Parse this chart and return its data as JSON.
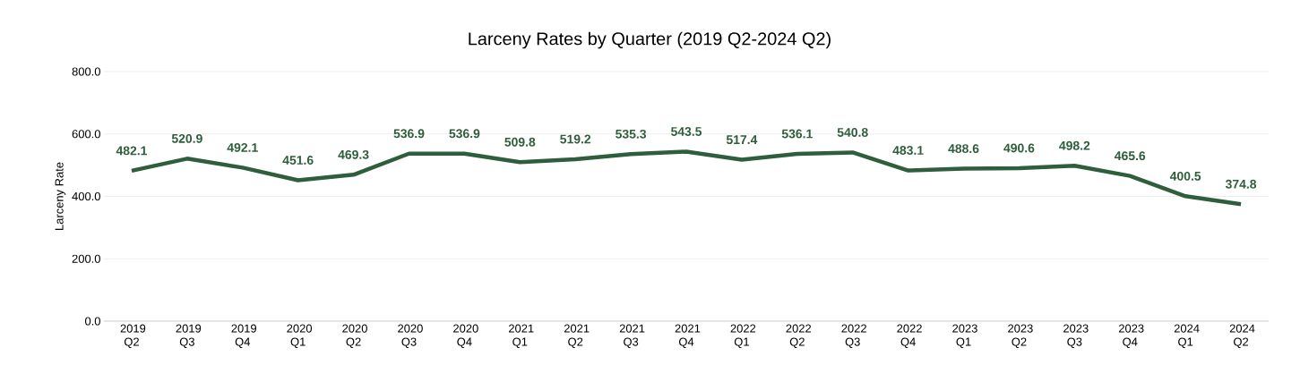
{
  "chart_data": {
    "type": "line",
    "title": "Larceny Rates by Quarter (2019 Q2-2024 Q2)",
    "ylabel": "Larceny Rate",
    "categories": [
      "2019 Q2",
      "2019 Q3",
      "2019 Q4",
      "2020 Q1",
      "2020 Q2",
      "2020 Q3",
      "2020 Q4",
      "2021 Q1",
      "2021 Q2",
      "2021 Q3",
      "2021 Q4",
      "2022 Q1",
      "2022 Q2",
      "2022 Q3",
      "2022 Q4",
      "2023 Q1",
      "2023 Q2",
      "2023 Q3",
      "2023 Q4",
      "2024 Q1",
      "2024 Q2"
    ],
    "values": [
      482.1,
      520.9,
      492.1,
      451.6,
      469.3,
      536.9,
      536.9,
      509.8,
      519.2,
      535.3,
      543.5,
      517.4,
      536.1,
      540.8,
      483.1,
      488.6,
      490.6,
      498.2,
      465.6,
      400.5,
      374.8
    ],
    "color": "#2e5e3b",
    "ylim": [
      0,
      800
    ],
    "yticks": [
      {
        "value": 0,
        "label": "0.0"
      },
      {
        "value": 200,
        "label": "200.0"
      },
      {
        "value": 400,
        "label": "400.0"
      },
      {
        "value": 600,
        "label": "600.0"
      },
      {
        "value": 800,
        "label": "800.0"
      }
    ],
    "grid": "y",
    "data_labels": true
  }
}
